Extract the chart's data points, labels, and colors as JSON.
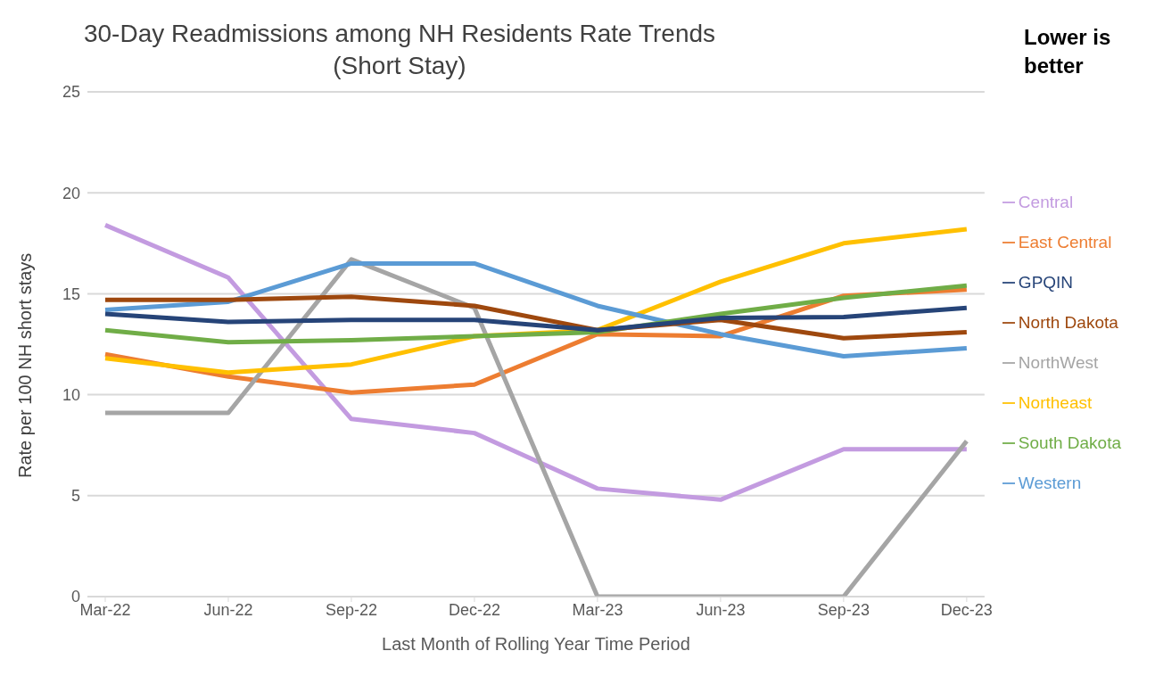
{
  "chart_data": {
    "type": "line",
    "title": "30-Day Readmissions among NH Residents Rate Trends",
    "subtitle": "(Short Stay)",
    "xlabel": "Last Month of Rolling Year Time Period",
    "ylabel": "Rate per 100 NH short stays",
    "annotations": [
      "Lower is better"
    ],
    "categories": [
      "Mar-22",
      "Jun-22",
      "Sep-22",
      "Dec-22",
      "Mar-23",
      "Jun-23",
      "Sep-23",
      "Dec-23"
    ],
    "series": [
      {
        "name": "Central",
        "color": "#c39be0",
        "values": [
          18.4,
          15.8,
          8.8,
          8.1,
          5.35,
          4.8,
          7.3,
          7.3
        ]
      },
      {
        "name": "East Central",
        "color": "#ed7d31",
        "values": [
          12.0,
          10.9,
          10.1,
          10.5,
          13.0,
          12.9,
          14.9,
          15.2
        ]
      },
      {
        "name": "NorthWest",
        "color": "#a5a5a5",
        "values": [
          9.1,
          9.1,
          16.7,
          14.3,
          0,
          0,
          0,
          7.7
        ]
      },
      {
        "name": "Northeast",
        "color": "#ffc000",
        "values": [
          11.8,
          11.1,
          11.5,
          12.9,
          13.2,
          15.6,
          17.5,
          18.2
        ]
      },
      {
        "name": "Western",
        "color": "#5b9bd5",
        "values": [
          14.2,
          14.6,
          16.5,
          16.5,
          14.4,
          13.0,
          11.9,
          12.3
        ]
      },
      {
        "name": "South Dakota",
        "color": "#70ad47",
        "values": [
          13.2,
          12.6,
          12.7,
          12.9,
          13.1,
          14.0,
          14.8,
          15.4
        ]
      },
      {
        "name": "North Dakota",
        "color": "#9e480e",
        "values": [
          14.7,
          14.7,
          14.85,
          14.4,
          13.2,
          13.7,
          12.8,
          13.1
        ]
      },
      {
        "name": "GPQIN",
        "color": "#264478",
        "values": [
          14.0,
          13.6,
          13.7,
          13.7,
          13.2,
          13.8,
          13.85,
          14.3
        ]
      }
    ],
    "ylim": [
      0,
      25
    ],
    "yticks": [
      0,
      5,
      10,
      15,
      20,
      25
    ],
    "grid": "y",
    "legend": "right",
    "marker": "none",
    "line_style": "solid"
  }
}
